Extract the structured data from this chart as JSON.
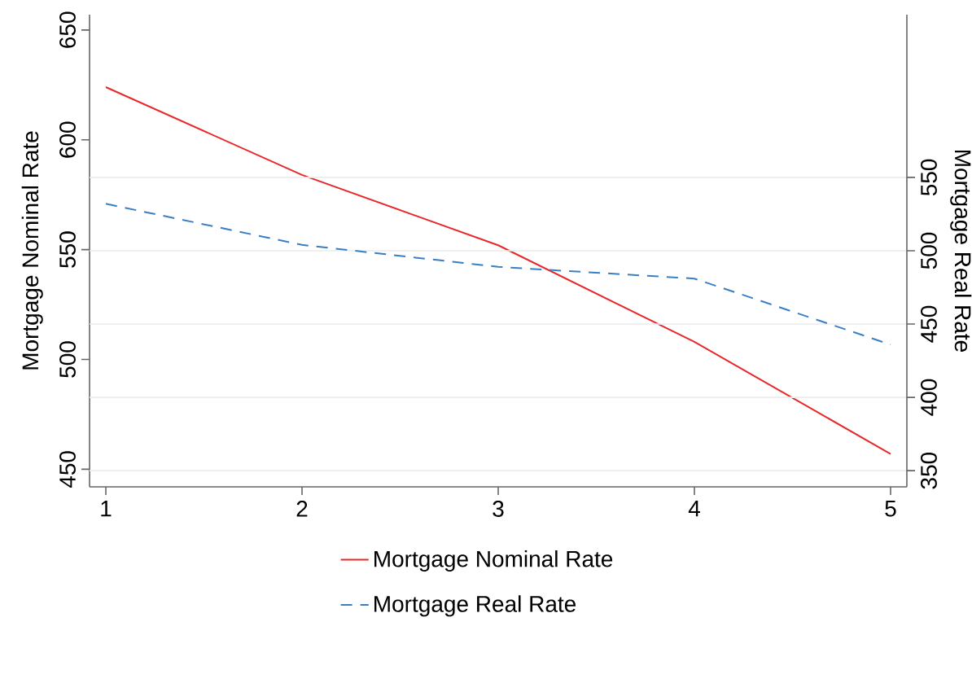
{
  "chart_data": {
    "type": "line",
    "x": [
      1,
      2,
      3,
      4,
      5
    ],
    "series": [
      {
        "name": "Mortgage Nominal Rate",
        "color": "#e8282b",
        "values": [
          624,
          584,
          552,
          508,
          457
        ],
        "line_style": "solid"
      },
      {
        "name": "Mortgage Real Rate",
        "color": "#3a7fc4",
        "values": [
          532,
          504,
          489,
          481,
          436
        ],
        "axis": "y2",
        "line_style": "dashed"
      }
    ],
    "ylabel": "Mortgage Nominal Rate",
    "y2label": "Mortgage Real Rate",
    "xlim": [
      0.917,
      5.083
    ],
    "xticks": [
      1,
      2,
      3,
      4,
      5
    ],
    "ylim": [
      442,
      657
    ],
    "yticks": [
      450,
      500,
      550,
      600,
      650
    ],
    "y2lim": [
      339,
      661
    ],
    "y2ticks": [
      350,
      400,
      450,
      500,
      550
    ],
    "grid": "y2",
    "legend": "bottom",
    "marker": "none"
  }
}
